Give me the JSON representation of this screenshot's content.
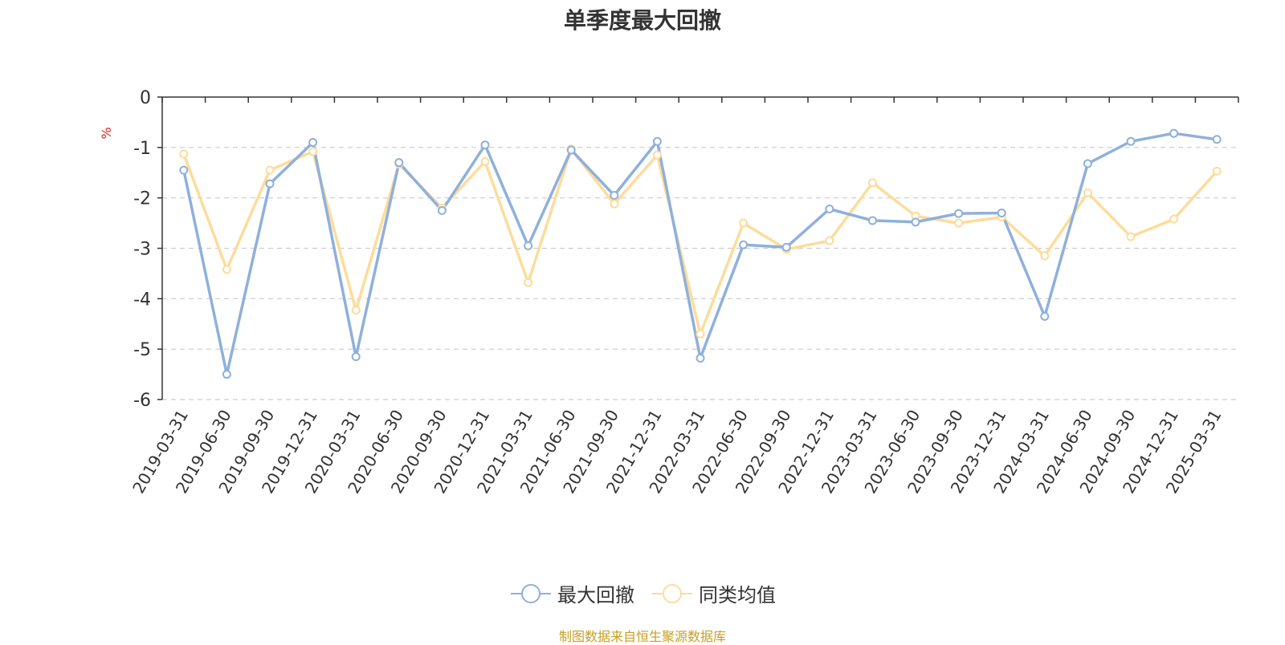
{
  "chart_data": {
    "type": "line",
    "title": "单季度最大回撤",
    "ylabel": "%",
    "ylim": [
      -6,
      0
    ],
    "yticks": [
      "0",
      "-1",
      "-2",
      "-3",
      "-4",
      "-5",
      "-6"
    ],
    "y_tick_values": [
      0,
      -1,
      -2,
      -3,
      -4,
      -5,
      -6
    ],
    "grid": true,
    "legend_position": "bottom",
    "categories": [
      "2019-03-31",
      "2019-06-30",
      "2019-09-30",
      "2019-12-31",
      "2020-03-31",
      "2020-06-30",
      "2020-09-30",
      "2020-12-31",
      "2021-03-31",
      "2021-06-30",
      "2021-09-30",
      "2021-12-31",
      "2022-03-31",
      "2022-06-30",
      "2022-09-30",
      "2022-12-31",
      "2023-03-31",
      "2023-06-30",
      "2023-09-30",
      "2023-12-31",
      "2024-03-31",
      "2024-06-30",
      "2024-09-30",
      "2024-12-31",
      "2025-03-31"
    ],
    "series": [
      {
        "name": "最大回撤",
        "color": "#8fb0dc",
        "values": [
          -1.45,
          -5.5,
          -1.72,
          -0.9,
          -5.15,
          -1.3,
          -2.25,
          -0.95,
          -2.95,
          -1.05,
          -1.95,
          -0.88,
          -5.18,
          -2.93,
          -2.98,
          -2.22,
          -2.45,
          -2.48,
          -2.31,
          -2.3,
          -4.35,
          -1.32,
          -0.88,
          -0.72,
          -0.84
        ]
      },
      {
        "name": "同类均值",
        "color": "#fddc9b",
        "values": [
          -1.13,
          -3.42,
          -1.45,
          -1.08,
          -4.23,
          -1.33,
          -2.2,
          -1.28,
          -3.68,
          -1.03,
          -2.12,
          -1.15,
          -4.7,
          -2.5,
          -3.02,
          -2.85,
          -1.7,
          -2.36,
          -2.5,
          -2.38,
          -3.15,
          -1.9,
          -2.77,
          -2.42,
          -1.47
        ]
      }
    ]
  },
  "legend": {
    "items": [
      "最大回撤",
      "同类均值"
    ]
  },
  "footer": {
    "source": "制图数据来自恒生聚源数据库"
  }
}
